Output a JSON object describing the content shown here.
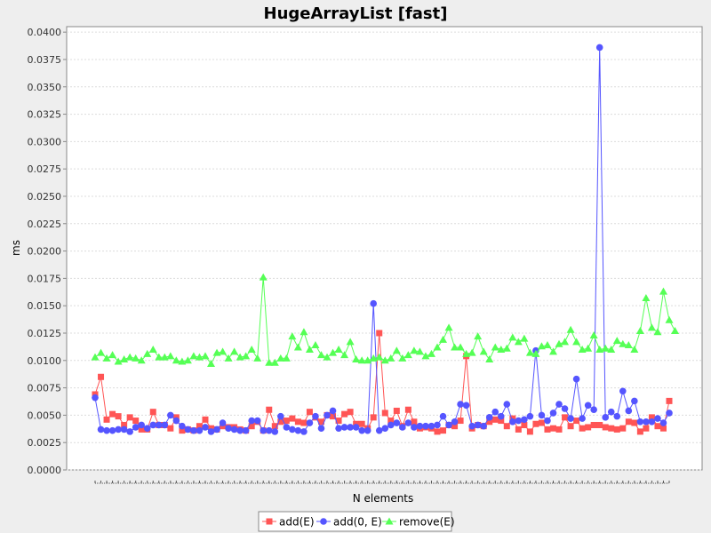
{
  "chart_data": {
    "type": "line",
    "title": "HugeArrayList [fast]",
    "xlabel": "N elements",
    "ylabel": "ms",
    "ylim": [
      0,
      0.0405
    ],
    "yticks": [
      "0.0000",
      "0.0025",
      "0.0050",
      "0.0075",
      "0.0100",
      "0.0125",
      "0.0150",
      "0.0175",
      "0.0200",
      "0.0225",
      "0.0250",
      "0.0275",
      "0.0300",
      "0.0325",
      "0.0350",
      "0.0375",
      "0.0400"
    ],
    "grid": true,
    "legend_position": "bottom",
    "series": [
      {
        "name": "add(E)",
        "color": "#ff5555",
        "marker": "square",
        "values": [
          0.0069,
          0.0085,
          0.0046,
          0.0051,
          0.0049,
          0.0041,
          0.0048,
          0.0045,
          0.0037,
          0.0037,
          0.0053,
          0.0041,
          0.0041,
          0.0038,
          0.0048,
          0.0036,
          0.0037,
          0.0036,
          0.004,
          0.0046,
          0.0038,
          0.0037,
          0.004,
          0.0039,
          0.0039,
          0.0037,
          0.0036,
          0.004,
          0.0044,
          0.0036,
          0.0055,
          0.004,
          0.0044,
          0.0045,
          0.0047,
          0.0044,
          0.0043,
          0.0053,
          0.0048,
          0.0044,
          0.005,
          0.0049,
          0.0045,
          0.0051,
          0.0053,
          0.0042,
          0.0042,
          0.0038,
          0.0048,
          0.0125,
          0.0052,
          0.0045,
          0.0054,
          0.004,
          0.0055,
          0.0044,
          0.0038,
          0.0039,
          0.0038,
          0.0035,
          0.0036,
          0.0041,
          0.004,
          0.0045,
          0.0104,
          0.0038,
          0.0041,
          0.004,
          0.0044,
          0.0046,
          0.0045,
          0.004,
          0.0047,
          0.0037,
          0.0041,
          0.0035,
          0.0042,
          0.0043,
          0.0037,
          0.0038,
          0.0037,
          0.0048,
          0.004,
          0.0045,
          0.0038,
          0.0039,
          0.0041,
          0.0041,
          0.0039,
          0.0038,
          0.0037,
          0.0038,
          0.0044,
          0.0043,
          0.0035,
          0.0038,
          0.0048,
          0.004,
          0.0038,
          0.0063
        ]
      },
      {
        "name": "add(0, E)",
        "color": "#5555ff",
        "marker": "circle",
        "values": [
          0.0066,
          0.0037,
          0.0036,
          0.0036,
          0.0037,
          0.0037,
          0.0035,
          0.0039,
          0.0041,
          0.0038,
          0.0041,
          0.0041,
          0.0041,
          0.005,
          0.0045,
          0.004,
          0.0037,
          0.0036,
          0.0036,
          0.0039,
          0.0035,
          0.0037,
          0.0043,
          0.0038,
          0.0037,
          0.0036,
          0.0036,
          0.0045,
          0.0045,
          0.0036,
          0.0036,
          0.0035,
          0.0049,
          0.0039,
          0.0037,
          0.0036,
          0.0035,
          0.0043,
          0.0049,
          0.0038,
          0.005,
          0.0054,
          0.0038,
          0.0039,
          0.0039,
          0.0039,
          0.0036,
          0.0036,
          0.0152,
          0.0036,
          0.0038,
          0.0041,
          0.0043,
          0.0039,
          0.0043,
          0.0039,
          0.004,
          0.004,
          0.004,
          0.0041,
          0.0049,
          0.0041,
          0.0044,
          0.006,
          0.0059,
          0.004,
          0.0041,
          0.004,
          0.0048,
          0.0053,
          0.0049,
          0.006,
          0.0044,
          0.0045,
          0.0046,
          0.0049,
          0.0109,
          0.005,
          0.0045,
          0.0052,
          0.006,
          0.0056,
          0.0047,
          0.0083,
          0.0047,
          0.0059,
          0.0055,
          0.0386,
          0.0048,
          0.0053,
          0.0049,
          0.0072,
          0.0054,
          0.0063,
          0.0044,
          0.0044,
          0.0044,
          0.0047,
          0.0043,
          0.0052
        ]
      },
      {
        "name": "remove(E)",
        "color": "#55ff55",
        "marker": "triangle",
        "values": [
          0.0103,
          0.0107,
          0.0102,
          0.0105,
          0.0099,
          0.0101,
          0.0103,
          0.0102,
          0.01,
          0.0106,
          0.011,
          0.0103,
          0.0103,
          0.0104,
          0.01,
          0.0099,
          0.01,
          0.0104,
          0.0103,
          0.0104,
          0.0097,
          0.0107,
          0.0108,
          0.0102,
          0.0108,
          0.0103,
          0.0104,
          0.011,
          0.0102,
          0.0176,
          0.0098,
          0.0098,
          0.0102,
          0.0102,
          0.0122,
          0.0112,
          0.0126,
          0.011,
          0.0114,
          0.0105,
          0.0103,
          0.0107,
          0.011,
          0.0105,
          0.0117,
          0.0101,
          0.01,
          0.01,
          0.0102,
          0.0103,
          0.01,
          0.0102,
          0.0109,
          0.0102,
          0.0105,
          0.0109,
          0.0108,
          0.0104,
          0.0106,
          0.0112,
          0.0119,
          0.013,
          0.0112,
          0.0112,
          0.0106,
          0.0107,
          0.0122,
          0.0108,
          0.0101,
          0.0112,
          0.011,
          0.0111,
          0.0121,
          0.0117,
          0.012,
          0.0107,
          0.0106,
          0.0113,
          0.0114,
          0.0108,
          0.0115,
          0.0117,
          0.0128,
          0.0117,
          0.011,
          0.0111,
          0.0123,
          0.011,
          0.0111,
          0.011,
          0.0118,
          0.0115,
          0.0114,
          0.011,
          0.0127,
          0.0157,
          0.013,
          0.0126,
          0.0163,
          0.0137,
          0.0127
        ]
      }
    ]
  }
}
